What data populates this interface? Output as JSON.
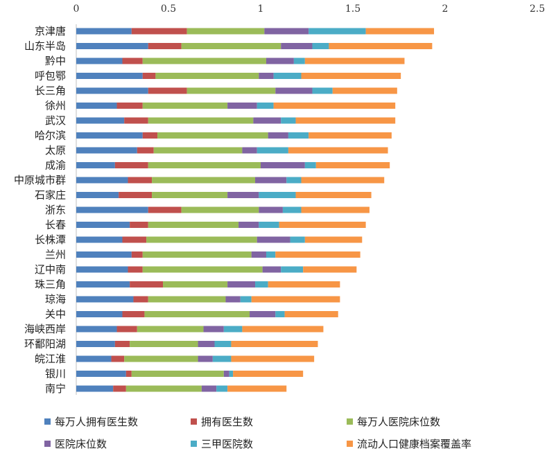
{
  "chart_data": {
    "type": "bar",
    "orientation": "horizontal",
    "stacked": true,
    "xlim": [
      0,
      2.5
    ],
    "xticks": [
      "0",
      "0.5",
      "1",
      "1.5",
      "2",
      "2.5"
    ],
    "xtick_values": [
      0,
      0.5,
      1,
      1.5,
      2,
      2.5
    ],
    "categories": [
      "京津唐",
      "山东半岛",
      "黔中",
      "呼包鄂",
      "长三角",
      "徐州",
      "武汉",
      "哈尔滨",
      "太原",
      "成渝",
      "中原城市群",
      "石家庄",
      "浙东",
      "长春",
      "长株潭",
      "兰州",
      "辽中南",
      "珠三角",
      "琼海",
      "关中",
      "海峡西岸",
      "环鄱阳湖",
      "皖江淮",
      "银川",
      "南宁"
    ],
    "series": [
      {
        "name": "每万人拥有医生数",
        "color": "#4f81bd",
        "values": [
          0.3,
          0.39,
          0.25,
          0.36,
          0.39,
          0.22,
          0.26,
          0.36,
          0.33,
          0.21,
          0.28,
          0.23,
          0.39,
          0.29,
          0.25,
          0.3,
          0.28,
          0.29,
          0.31,
          0.25,
          0.22,
          0.21,
          0.19,
          0.27,
          0.2
        ]
      },
      {
        "name": "拥有医生数",
        "color": "#c0504d",
        "values": [
          0.3,
          0.18,
          0.11,
          0.07,
          0.21,
          0.14,
          0.13,
          0.08,
          0.09,
          0.18,
          0.13,
          0.18,
          0.18,
          0.1,
          0.13,
          0.06,
          0.08,
          0.18,
          0.08,
          0.12,
          0.11,
          0.08,
          0.07,
          0.03,
          0.07
        ]
      },
      {
        "name": "每万人医院床位数",
        "color": "#9bbb59",
        "values": [
          0.42,
          0.54,
          0.67,
          0.56,
          0.48,
          0.46,
          0.57,
          0.6,
          0.48,
          0.61,
          0.56,
          0.41,
          0.42,
          0.49,
          0.6,
          0.59,
          0.65,
          0.35,
          0.42,
          0.57,
          0.36,
          0.37,
          0.4,
          0.5,
          0.41
        ]
      },
      {
        "name": "医院床位数",
        "color": "#8064a2",
        "values": [
          0.24,
          0.17,
          0.15,
          0.08,
          0.2,
          0.16,
          0.15,
          0.11,
          0.08,
          0.24,
          0.17,
          0.17,
          0.13,
          0.11,
          0.18,
          0.08,
          0.1,
          0.15,
          0.08,
          0.14,
          0.11,
          0.09,
          0.08,
          0.03,
          0.08
        ]
      },
      {
        "name": "三甲医院数",
        "color": "#4bacc6",
        "values": [
          0.31,
          0.09,
          0.06,
          0.15,
          0.11,
          0.09,
          0.08,
          0.11,
          0.17,
          0.06,
          0.08,
          0.2,
          0.1,
          0.11,
          0.08,
          0.05,
          0.12,
          0.07,
          0.06,
          0.05,
          0.1,
          0.09,
          0.1,
          0.02,
          0.06
        ]
      },
      {
        "name": "流动人口健康档案覆盖率",
        "color": "#f79646",
        "values": [
          0.37,
          0.56,
          0.54,
          0.54,
          0.35,
          0.66,
          0.54,
          0.45,
          0.54,
          0.4,
          0.45,
          0.41,
          0.37,
          0.47,
          0.31,
          0.46,
          0.29,
          0.39,
          0.48,
          0.29,
          0.44,
          0.47,
          0.45,
          0.38,
          0.32
        ]
      }
    ]
  }
}
